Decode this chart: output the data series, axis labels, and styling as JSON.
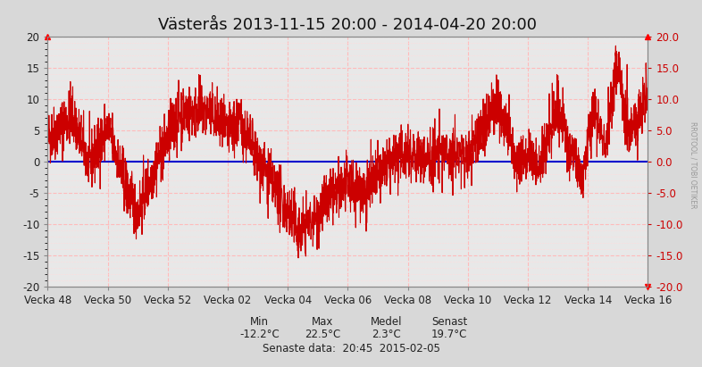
{
  "title": "Västerås 2013-11-15 20:00 - 2014-04-20 20:00",
  "xlabel_ticks": [
    "Vecka 48",
    "Vecka 50",
    "Vecka 52",
    "Vecka 02",
    "Vecka 04",
    "Vecka 06",
    "Vecka 08",
    "Vecka 10",
    "Vecka 12",
    "Vecka 14",
    "Vecka 16"
  ],
  "yticks": [
    -20,
    -15,
    -10,
    -5,
    0,
    5,
    10,
    15,
    20
  ],
  "ylim": [
    -20,
    20
  ],
  "line_color": "#cc0000",
  "zero_line_color": "#0000cc",
  "grid_major_color": "#ffbbbb",
  "grid_minor_color": "#ffdddd",
  "bg_color": "#d8d8d8",
  "plot_bg_color": "#e8e8e8",
  "min_val": "-12.2°C",
  "max_val": "22.5°C",
  "medel_val": "2.3°C",
  "senast_val": "19.7°C",
  "watermark": "RROTOOL / TOBI OETIKER",
  "title_fontsize": 13,
  "tick_fontsize": 8.5,
  "stats_fontsize": 8.5
}
